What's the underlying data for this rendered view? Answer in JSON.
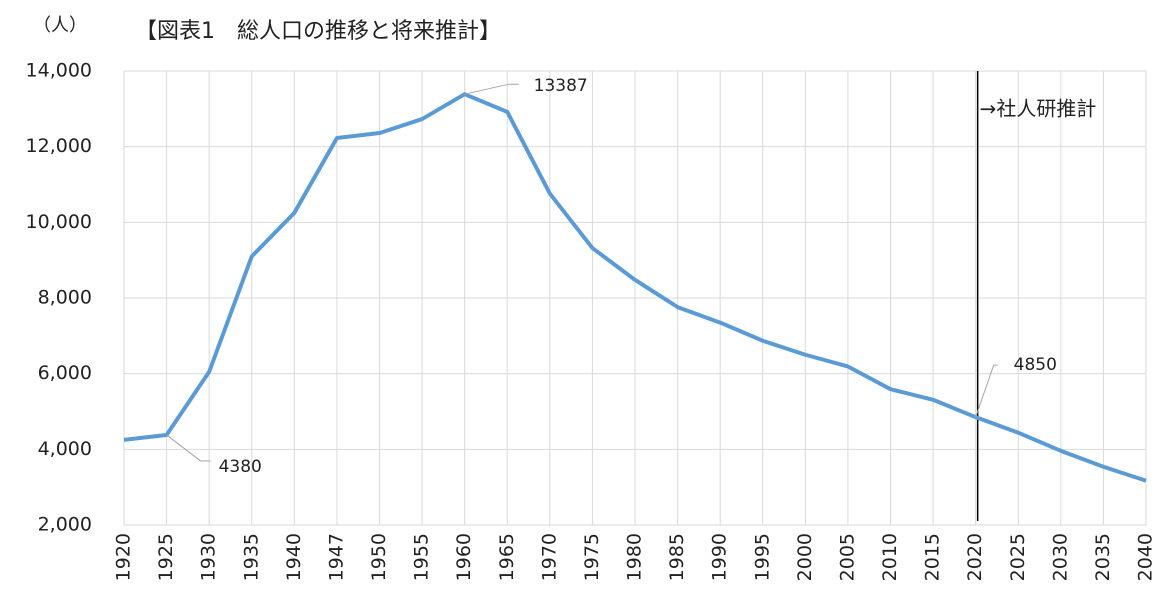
{
  "chart_data": {
    "type": "line",
    "title": "【図表1　総人口の推移と将来推計】",
    "y_unit": "（人）",
    "annotation": {
      "text": "→社人研推計",
      "category": "2020"
    },
    "categories": [
      "1920",
      "1925",
      "1930",
      "1935",
      "1940",
      "1947",
      "1950",
      "1955",
      "1960",
      "1965",
      "1970",
      "1975",
      "1980",
      "1985",
      "1990",
      "1995",
      "2000",
      "2005",
      "2010",
      "2015",
      "2020",
      "2025",
      "2030",
      "2035",
      "2040"
    ],
    "series": [
      {
        "name": "総人口",
        "color": "#5b9bd5",
        "values": [
          4250,
          4380,
          6050,
          9100,
          10250,
          12230,
          12360,
          12730,
          13387,
          12920,
          10760,
          9320,
          8480,
          7760,
          7350,
          6870,
          6500,
          6190,
          5590,
          5310,
          4850,
          4440,
          3960,
          3540,
          3170
        ]
      }
    ],
    "ylim": [
      2000,
      14000
    ],
    "yticks": [
      {
        "value": 2000,
        "label": "2,000"
      },
      {
        "value": 4000,
        "label": "4,000"
      },
      {
        "value": 6000,
        "label": "6,000"
      },
      {
        "value": 8000,
        "label": "8,000"
      },
      {
        "value": 10000,
        "label": "10,000"
      },
      {
        "value": 12000,
        "label": "12,000"
      },
      {
        "value": 14000,
        "label": "14,000"
      }
    ],
    "grid": true
  }
}
